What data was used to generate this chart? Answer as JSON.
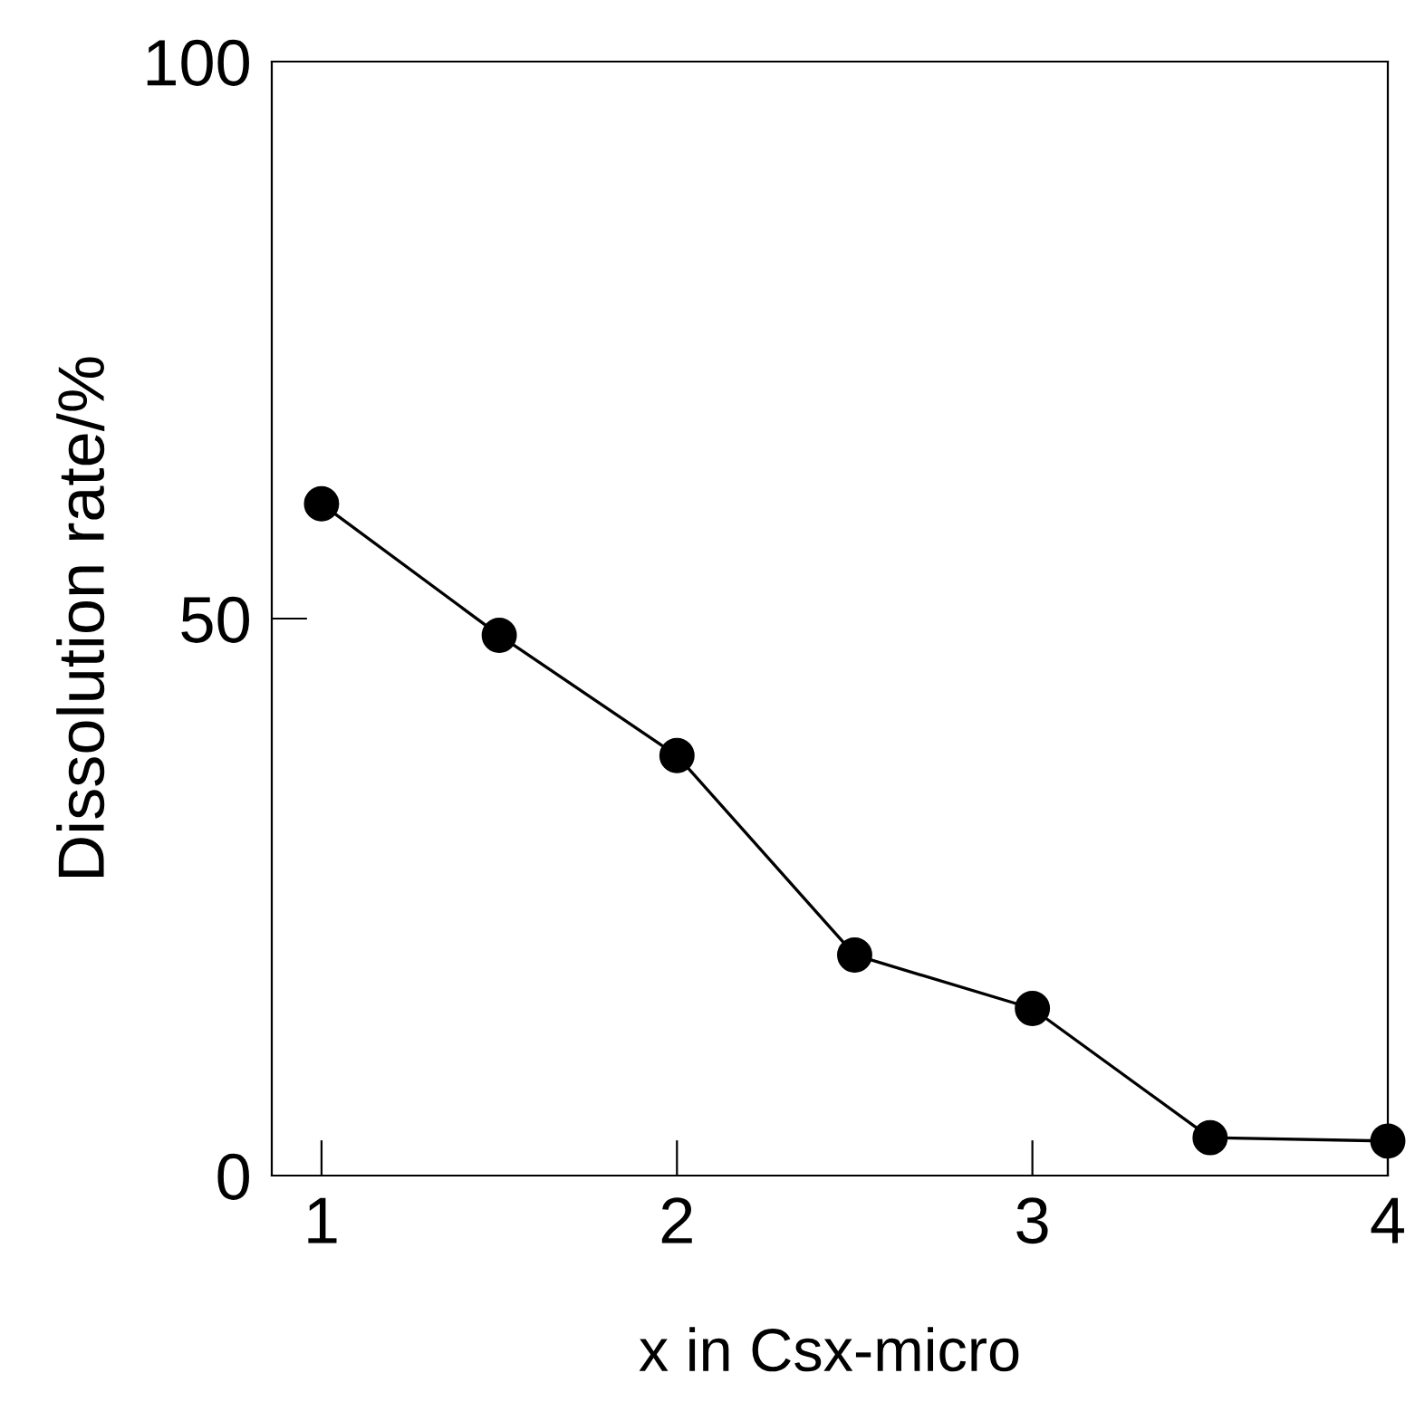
{
  "chart_data": {
    "type": "line",
    "xlabel": "x in Csx-micro",
    "ylabel": "Dissolution rate/%",
    "x": [
      1,
      1.5,
      2,
      2.5,
      3,
      3.5,
      4
    ],
    "series": [
      {
        "color": "#000000",
        "values": [
          60.3,
          48.5,
          37.7,
          19.8,
          15.0,
          3.4,
          3.1
        ]
      }
    ],
    "xlim": [
      0.86,
      4
    ],
    "ylim": [
      0,
      100
    ],
    "xticks": [
      1,
      2,
      3,
      4
    ],
    "yticks": [
      0,
      50,
      100
    ],
    "grid": false,
    "legend": false,
    "marker": "circle",
    "line_style": "solid"
  }
}
